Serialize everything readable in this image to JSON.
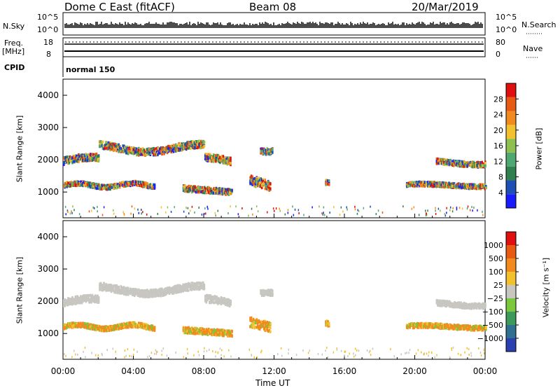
{
  "header": {
    "station": "Dome C East (fitACF)",
    "beam": "Beam 08",
    "date": "20/Mar/2019"
  },
  "strip": {
    "nsky_label": "N.Sky",
    "nsky_ticks": [
      "10^5",
      "10^0"
    ],
    "nsearch_label": "N.Search",
    "nsearch_ticks": [
      "10^5",
      "10^0"
    ],
    "freq_label": "Freq.",
    "freq_unit": "[MHz]",
    "freq_ticks": [
      "18",
      "8"
    ],
    "nave_label": "Nave",
    "nave_ticks": [
      "80",
      "0"
    ],
    "cpid_label": "CPID",
    "cpid_value": "normal 150"
  },
  "chart_data": [
    {
      "type": "heatmap",
      "name": "power",
      "ylabel": "Slant Range [km]",
      "yticks": [
        "4000",
        "3000",
        "2000",
        "1000"
      ],
      "ylim": [
        200,
        4500
      ],
      "colorbar_label": "Power [dB]",
      "colorbar_ticks": [
        "28",
        "24",
        "20",
        "16",
        "12",
        "8",
        "4"
      ],
      "colorbar_range": [
        0,
        32
      ],
      "colors": [
        "#1a1aff",
        "#1f4fb4",
        "#2f7f4f",
        "#4fa86f",
        "#8ec04f",
        "#f2c12e",
        "#f28a1e",
        "#e85a12",
        "#e01010"
      ]
    },
    {
      "type": "heatmap",
      "name": "velocity",
      "ylabel": "Slant Range [km]",
      "yticks": [
        "4000",
        "3000",
        "2000",
        "1000"
      ],
      "ylim": [
        200,
        4500
      ],
      "colorbar_label": "Velocity [m s⁻¹]",
      "colorbar_ticks": [
        "1000",
        "500",
        "100",
        "25",
        "−25",
        "−100",
        "−500",
        "−1000"
      ],
      "colors": [
        "#2a3fb0",
        "#2f6f8f",
        "#3c9a5a",
        "#7ac83c",
        "#c8c6c0",
        "#f2c12e",
        "#f28a1e",
        "#e85a12",
        "#e01010"
      ]
    }
  ],
  "xaxis": {
    "ticks": [
      "00:00",
      "04:00",
      "08:00",
      "12:00",
      "16:00",
      "20:00",
      "00:00"
    ],
    "label": "Time UT"
  }
}
